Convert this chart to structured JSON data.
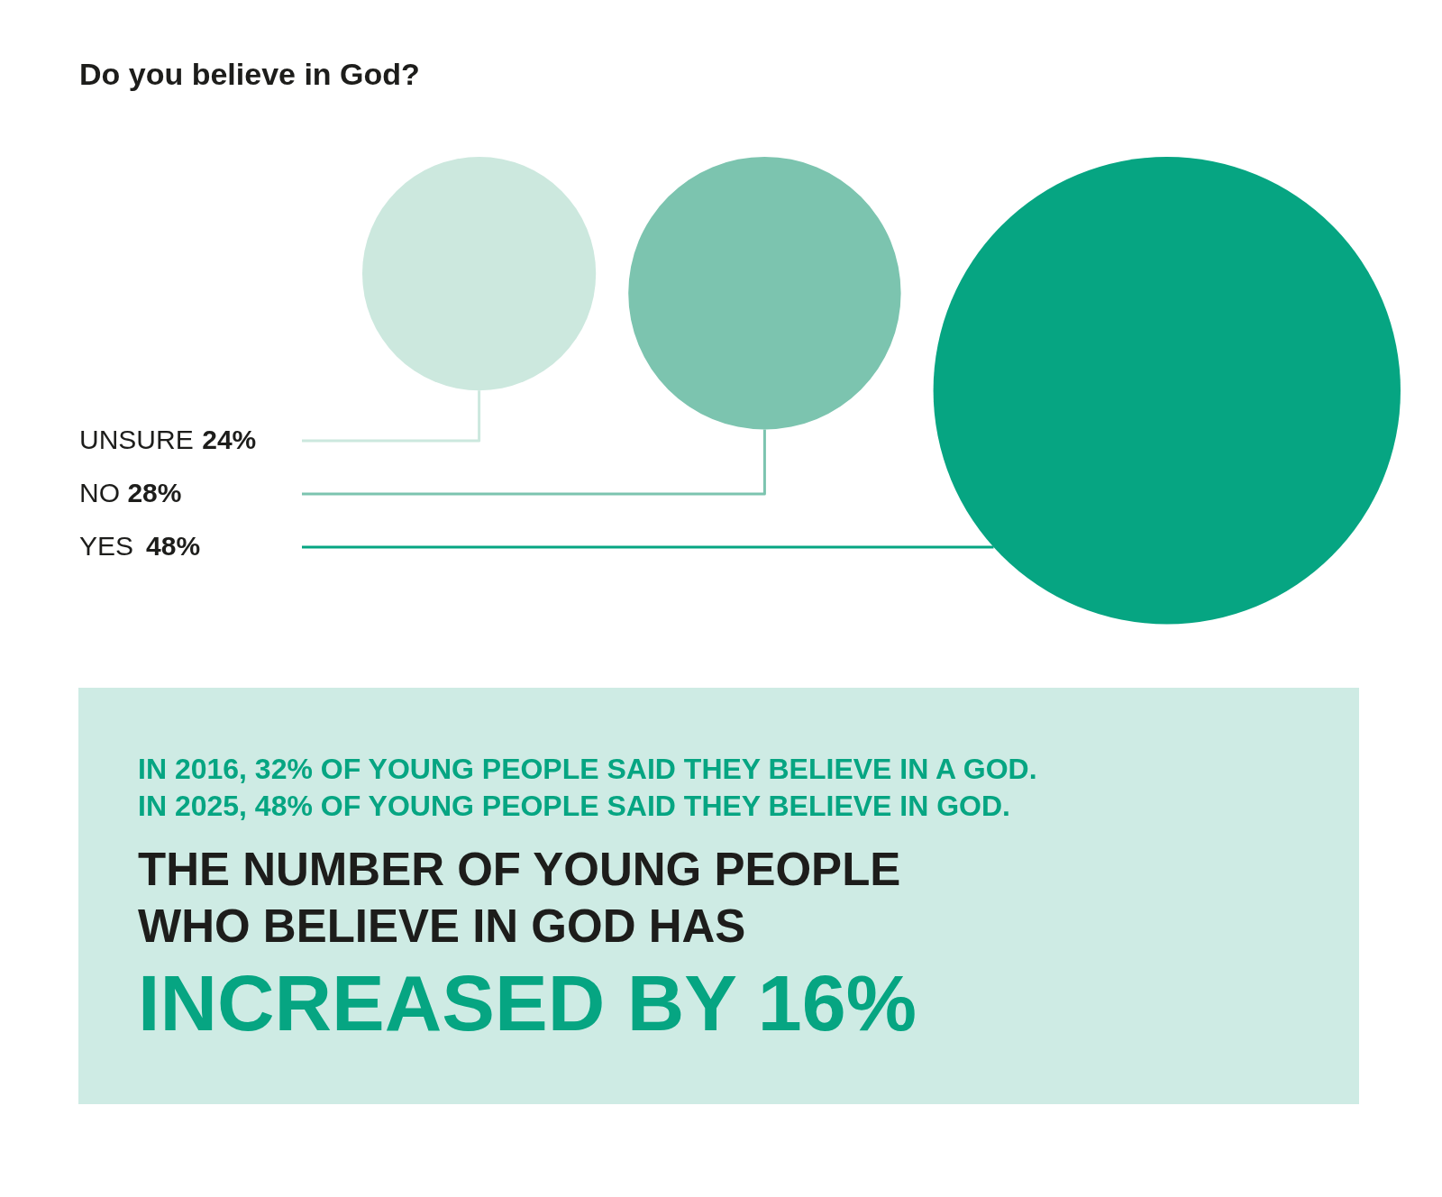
{
  "chart_data": {
    "type": "other",
    "title": "Do you believe in God?",
    "categories": [
      "UNSURE",
      "NO",
      "YES"
    ],
    "values": [
      24,
      28,
      48
    ],
    "value_labels": [
      "24%",
      "28%",
      "48%"
    ],
    "colors": [
      "#cce8de",
      "#7cc4af",
      "#06a582"
    ],
    "annotations": [
      "IN 2016, 32% OF YOUNG PEOPLE SAID THEY BELIEVE IN A GOD.",
      "IN 2025, 48% OF YOUNG PEOPLE SAID THEY BELIEVE IN GOD.",
      "THE NUMBER OF YOUNG PEOPLE",
      "WHO BELIEVE IN GOD HAS",
      "INCREASED BY 16%"
    ]
  }
}
